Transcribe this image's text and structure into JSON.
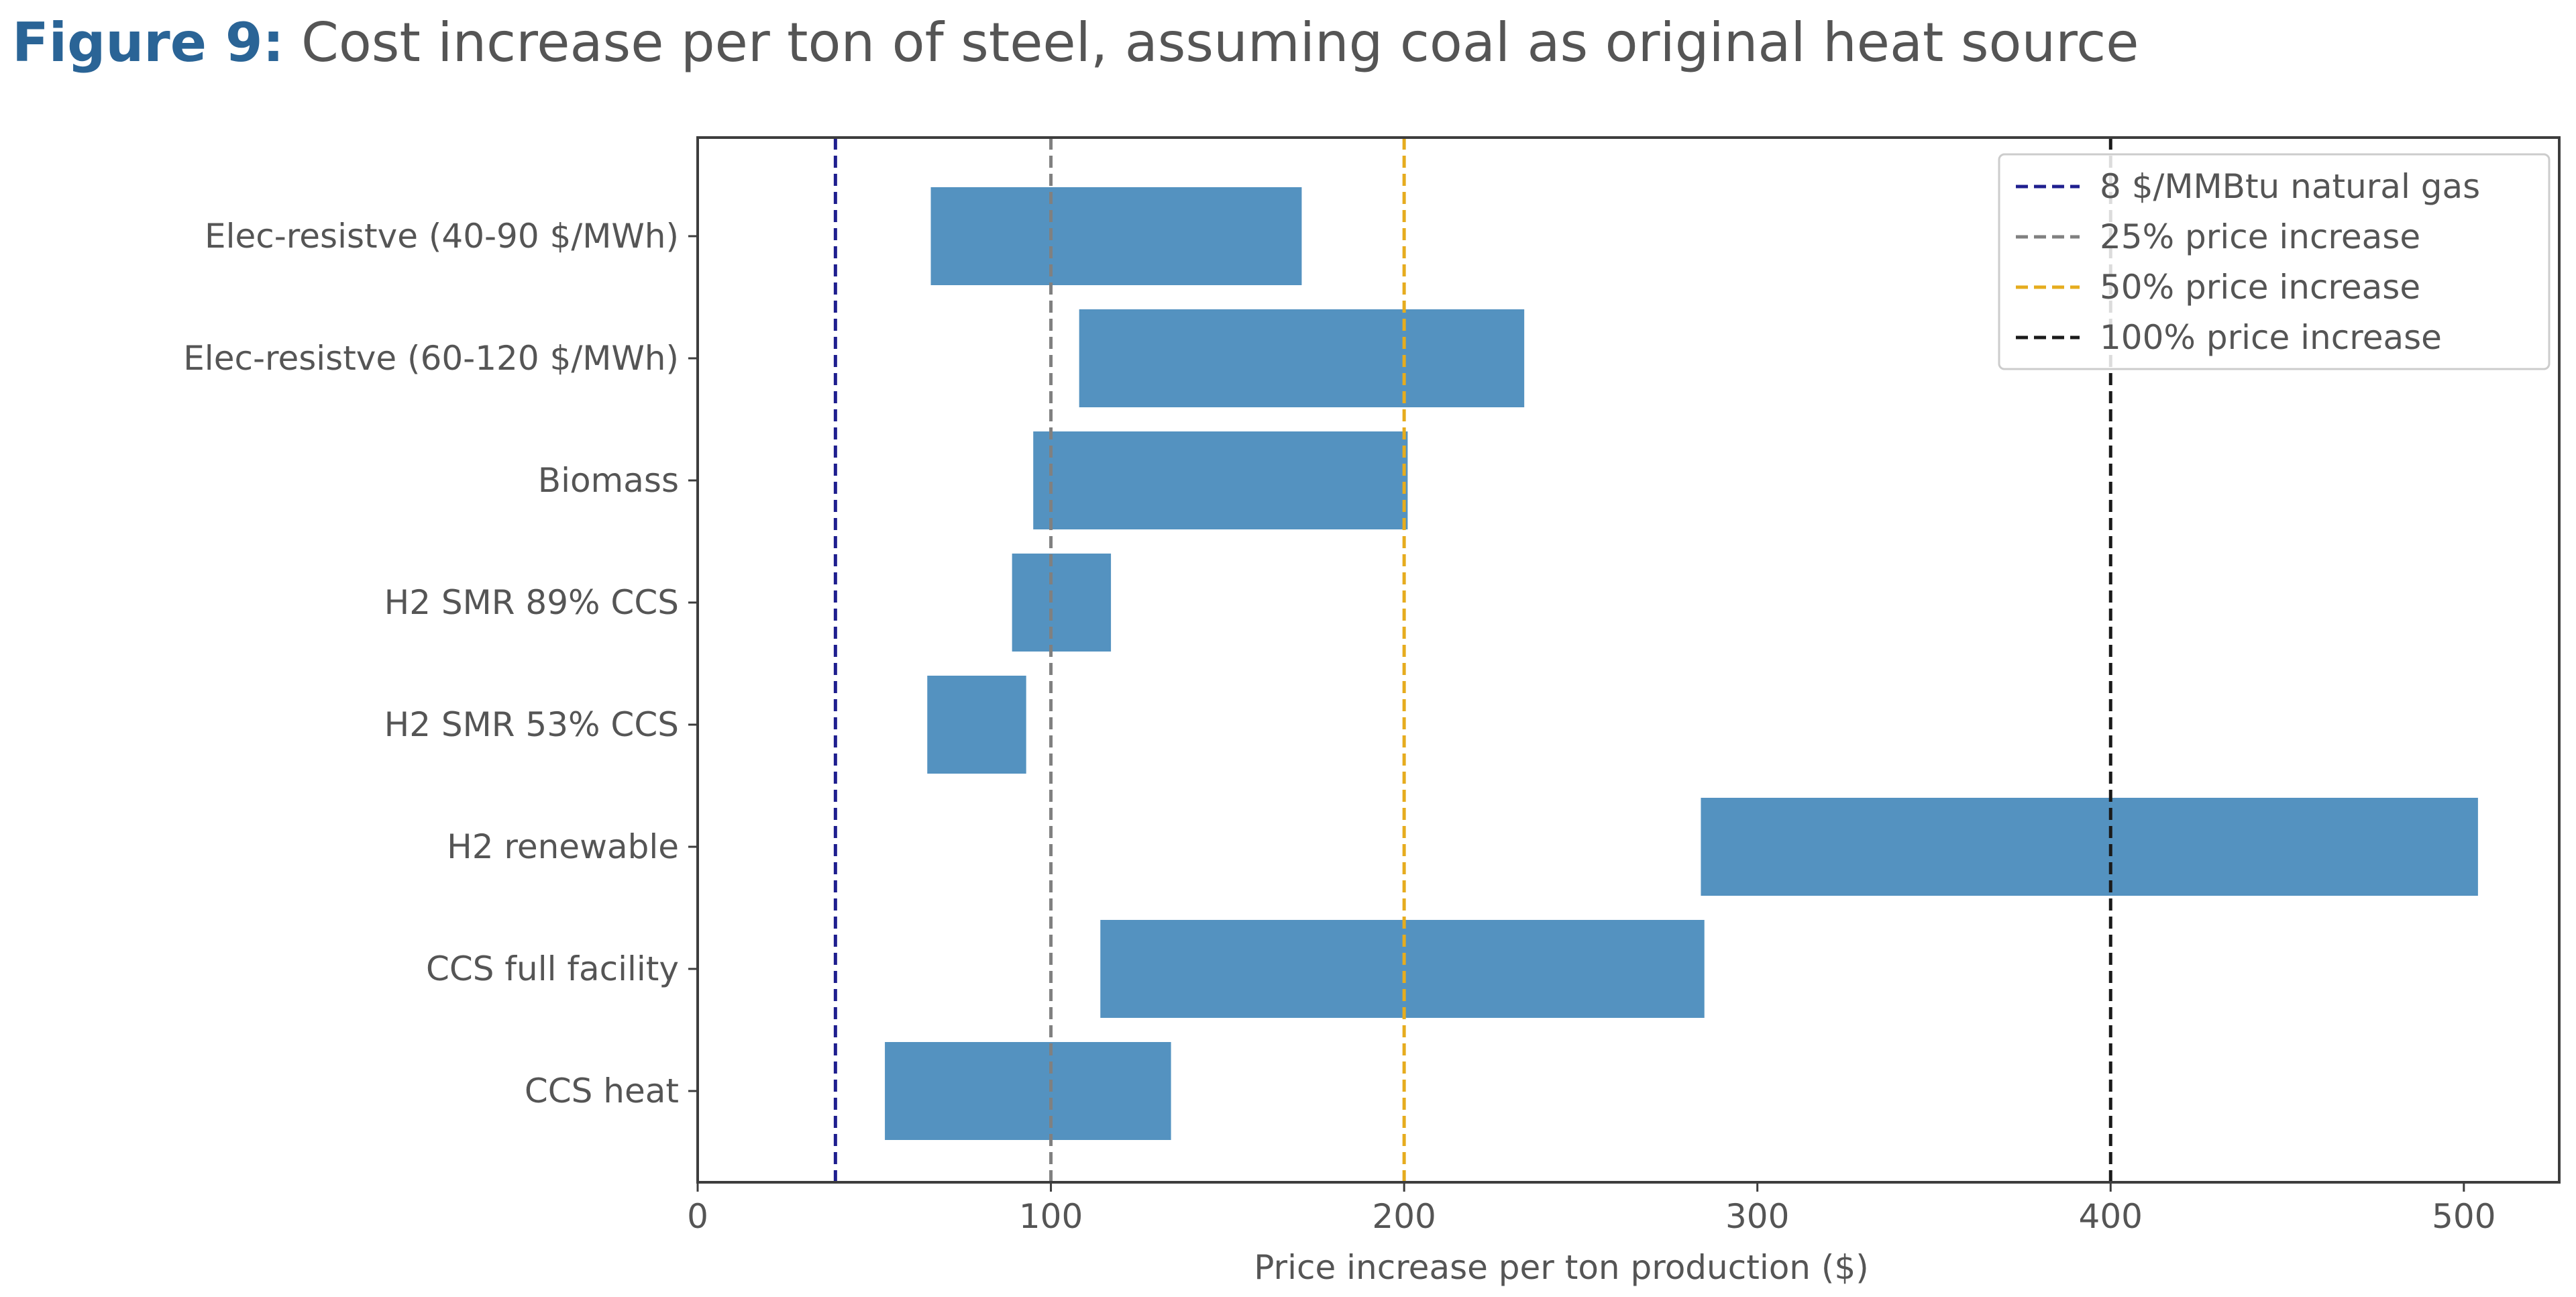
{
  "figure": {
    "number_label": "Figure 9:",
    "caption": "Cost increase per ton of steel, assuming coal as original heat source"
  },
  "chart_data": {
    "type": "bar",
    "orientation": "horizontal-range",
    "categories": [
      "Elec-resistve (40-90 $/MWh)",
      "Elec-resistve (60-120 $/MWh)",
      "Biomass",
      "H2 SMR 89% CCS",
      "H2 SMR 53% CCS",
      "H2 renewable",
      "CCS full facility",
      "CCS heat"
    ],
    "ranges": [
      [
        66,
        171
      ],
      [
        108,
        234
      ],
      [
        95,
        201
      ],
      [
        89,
        117
      ],
      [
        65,
        93
      ],
      [
        284,
        504
      ],
      [
        114,
        285
      ],
      [
        53,
        134
      ]
    ],
    "bar_color": "#5492c0",
    "xlabel": "Price increase per ton production ($)",
    "ylabel": "",
    "xlim": [
      0,
      527
    ],
    "xticks": [
      0,
      100,
      200,
      300,
      400,
      500
    ],
    "grid": false,
    "reference_lines": [
      {
        "name": "8 $/MMBtu natural gas",
        "x": 39,
        "color": "#1f1f8f"
      },
      {
        "name": "25% price increase",
        "x": 100,
        "color": "#808080"
      },
      {
        "name": "50% price increase",
        "x": 200,
        "color": "#e6ac1e"
      },
      {
        "name": "100% price increase",
        "x": 400,
        "color": "#1a1a1a"
      }
    ],
    "legend_position": "top-right"
  }
}
